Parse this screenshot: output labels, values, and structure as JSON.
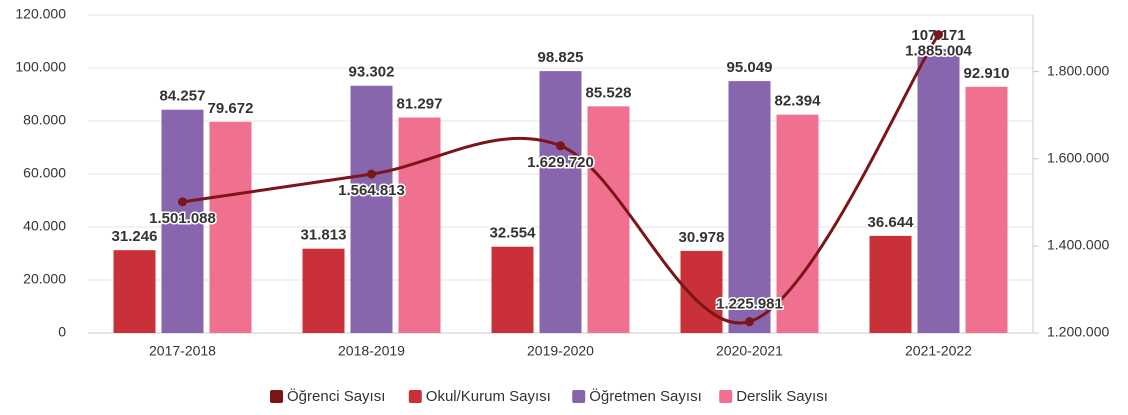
{
  "chart_data": {
    "type": "bar",
    "categories": [
      "2017-2018",
      "2018-2019",
      "2019-2020",
      "2020-2021",
      "2021-2022"
    ],
    "series": [
      {
        "name": "Öğrenci Sayısı",
        "type": "line",
        "axis": "y2",
        "color": "#7b1518",
        "values": [
          1501088,
          1564813,
          1629720,
          1225981,
          1885004
        ],
        "value_labels": [
          "1.501.088",
          "1.564.813",
          "1.629.720",
          "1.225.981",
          "1.885.004"
        ]
      },
      {
        "name": "Okul/Kurum Sayısı",
        "color": "#c93038",
        "values": [
          31246,
          31813,
          32554,
          30978,
          36644
        ],
        "value_labels": [
          "31.246",
          "31.813",
          "32.554",
          "30.978",
          "36.644"
        ]
      },
      {
        "name": "Öğretmen Sayısı",
        "color": "#8866ad",
        "values": [
          84257,
          93302,
          98825,
          95049,
          107171
        ],
        "value_labels": [
          "84.257",
          "93.302",
          "98.825",
          "95.049",
          "107.171"
        ]
      },
      {
        "name": "Derslik Sayısı",
        "color": "#f07090",
        "values": [
          79672,
          81297,
          85528,
          82394,
          92910
        ],
        "value_labels": [
          "79.672",
          "81.297",
          "85.528",
          "82.394",
          "92.910"
        ]
      }
    ],
    "ylim": [
      0,
      120000
    ],
    "yticks": [
      0,
      {
        "value": 20000,
        "label": "20.000"
      },
      {
        "value": 40000,
        "label": "40.000"
      },
      {
        "value": 60000,
        "label": "60.000"
      },
      {
        "value": 80000,
        "label": "80.000"
      },
      {
        "value": 100000,
        "label": "100.000"
      },
      {
        "value": 120000,
        "label": "120.000"
      }
    ],
    "y2lim": [
      1200000,
      1930000
    ],
    "y2ticks": [
      {
        "value": 1200000,
        "label": "1.200.000"
      },
      {
        "value": 1400000,
        "label": "1.400.000"
      },
      {
        "value": 1600000,
        "label": "1.600.000"
      },
      {
        "value": 1800000,
        "label": "1.800.000"
      }
    ],
    "grid": true,
    "legend": "bottom"
  }
}
